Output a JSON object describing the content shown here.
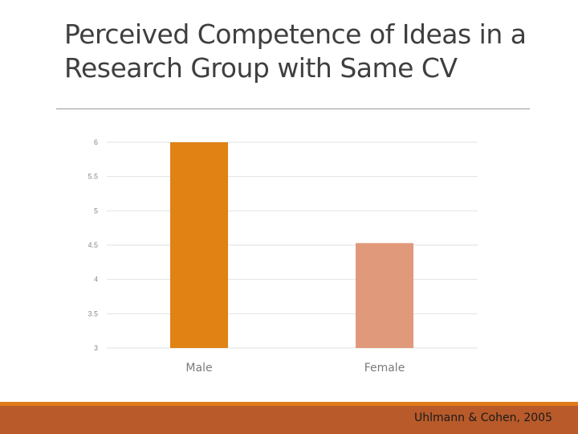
{
  "slide": {
    "title_line1": "Perceived Competence of Ideas in a",
    "title_line2": "Research Group with Same CV",
    "citation": "Uhlmann & Cohen, 2005"
  },
  "colors": {
    "male_bar": "#e08214",
    "female_bar": "#e0997a",
    "footer": "#b85a2a",
    "footer_accent": "#e07a1a"
  },
  "chart_data": {
    "type": "bar",
    "categories": [
      "Male",
      "Female"
    ],
    "values": [
      6,
      4.53
    ],
    "title": "",
    "xlabel": "",
    "ylabel": "",
    "ylim": [
      3,
      6
    ],
    "yticks": [
      "6",
      "5.5",
      "5",
      "4.5",
      "4",
      "3.5",
      "3"
    ],
    "grid": true,
    "legend": "none"
  }
}
